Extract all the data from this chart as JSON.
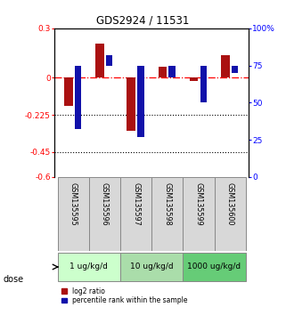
{
  "title": "GDS2924 / 11531",
  "samples": [
    "GSM135595",
    "GSM135596",
    "GSM135597",
    "GSM135598",
    "GSM135599",
    "GSM135600"
  ],
  "log2_ratio": [
    -0.17,
    0.21,
    -0.32,
    0.07,
    -0.02,
    0.14
  ],
  "percentile_rank": [
    32,
    82,
    27,
    67,
    50,
    70
  ],
  "dose_groups": [
    {
      "label": "1 ug/kg/d",
      "color": "#ccffcc"
    },
    {
      "label": "10 ug/kg/d",
      "color": "#aaddaa"
    },
    {
      "label": "1000 ug/kg/d",
      "color": "#66cc77"
    }
  ],
  "ylim_left": [
    -0.6,
    0.3
  ],
  "ylim_right": [
    0,
    100
  ],
  "left_ticks": [
    0.3,
    0,
    -0.225,
    -0.45,
    -0.6
  ],
  "right_ticks": [
    100,
    75,
    50,
    25,
    0
  ],
  "hline_dotted1": -0.225,
  "hline_dotted2": -0.45,
  "bar_color_red": "#aa1111",
  "bar_color_blue": "#1111aa",
  "bar_width": 0.3,
  "sample_box_color": "#d8d8d8",
  "dose_label": "dose",
  "legend_red": "log2 ratio",
  "legend_blue": "percentile rank within the sample"
}
